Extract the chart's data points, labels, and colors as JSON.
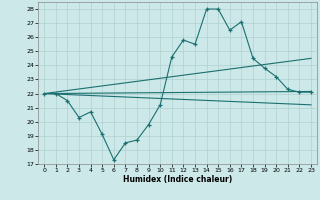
{
  "xlabel": "Humidex (Indice chaleur)",
  "bg_color": "#cce8e8",
  "line_color": "#1a7070",
  "grid_color": "#b0d0d0",
  "xlim": [
    -0.5,
    23.5
  ],
  "ylim": [
    17,
    28.5
  ],
  "yticks": [
    17,
    18,
    19,
    20,
    21,
    22,
    23,
    24,
    25,
    26,
    27,
    28
  ],
  "xticks": [
    0,
    1,
    2,
    3,
    4,
    5,
    6,
    7,
    8,
    9,
    10,
    11,
    12,
    13,
    14,
    15,
    16,
    17,
    18,
    19,
    20,
    21,
    22,
    23
  ],
  "main_series": {
    "x": [
      0,
      1,
      2,
      3,
      4,
      5,
      6,
      7,
      8,
      9,
      10,
      11,
      12,
      13,
      14,
      15,
      16,
      17,
      18,
      19,
      20,
      21,
      22,
      23
    ],
    "y": [
      22.0,
      22.0,
      21.5,
      20.3,
      20.7,
      19.1,
      17.3,
      18.5,
      18.7,
      19.8,
      21.2,
      24.6,
      25.8,
      25.5,
      28.0,
      28.0,
      26.5,
      27.1,
      24.5,
      23.8,
      23.2,
      22.3,
      22.1,
      22.1
    ]
  },
  "trend_lines": [
    {
      "x0": 0,
      "y0": 22.0,
      "x1": 23,
      "y1": 22.15
    },
    {
      "x0": 0,
      "y0": 22.0,
      "x1": 23,
      "y1": 24.5
    },
    {
      "x0": 0,
      "y0": 22.0,
      "x1": 23,
      "y1": 21.2
    }
  ]
}
